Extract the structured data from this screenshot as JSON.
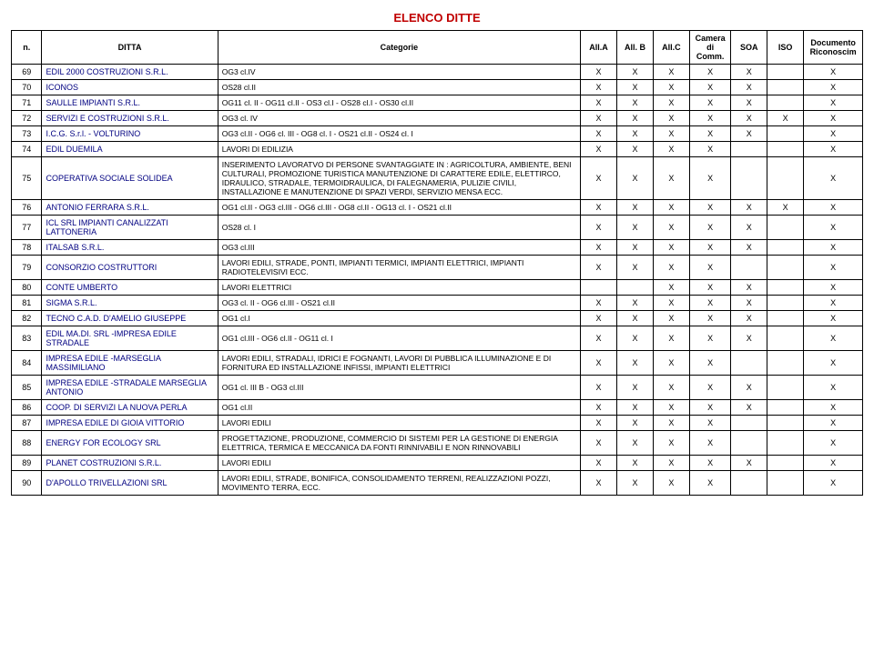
{
  "title": "ELENCO DITTE",
  "headers": {
    "n": "n.",
    "ditta": "DITTA",
    "categorie": "Categorie",
    "a": "All.A",
    "b": "All. B",
    "c": "All.C",
    "d": "Camera di Comm.",
    "e": "SOA",
    "f": "ISO",
    "g": "Documento Riconoscim"
  },
  "rows": [
    {
      "n": "69",
      "ditta": "EDIL 2000 COSTRUZIONI S.R.L.",
      "cat": "OG3 cl.IV",
      "m": [
        "X",
        "X",
        "X",
        "X",
        "X",
        "",
        "X"
      ]
    },
    {
      "n": "70",
      "ditta": "ICONOS",
      "cat": "OS28 cl.II",
      "m": [
        "X",
        "X",
        "X",
        "X",
        "X",
        "",
        "X"
      ]
    },
    {
      "n": "71",
      "ditta": "SAULLE IMPIANTI S.R.L.",
      "cat": "OG11 cl. II - OG11 cl.II - OS3 cl.I - OS28 cl.I - OS30 cl.II",
      "m": [
        "X",
        "X",
        "X",
        "X",
        "X",
        "",
        "X"
      ]
    },
    {
      "n": "72",
      "ditta": "SERVIZI E COSTRUZIONI S.R.L.",
      "cat": "OG3 cl. IV",
      "m": [
        "X",
        "X",
        "X",
        "X",
        "X",
        "X",
        "X"
      ]
    },
    {
      "n": "73",
      "ditta": "I.C.G. S.r.l. - VOLTURINO",
      "cat": "OG3 cl.II - OG6 cl. III - OG8 cl. I - OS21 cl.II - OS24 cl. I",
      "m": [
        "X",
        "X",
        "X",
        "X",
        "X",
        "",
        "X"
      ]
    },
    {
      "n": "74",
      "ditta": "EDIL DUEMILA",
      "cat": "LAVORI DI EDILIZIA",
      "m": [
        "X",
        "X",
        "X",
        "X",
        "",
        "",
        "X"
      ]
    },
    {
      "n": "75",
      "ditta": "COPERATIVA SOCIALE SOLIDEA",
      "cat": "INSERIMENTO LAVORATVO DI PERSONE SVANTAGGIATE IN : AGRICOLTURA, AMBIENTE, BENI CULTURALI, PROMOZIONE TURISTICA MANUTENZIONE DI CARATTERE EDILE, ELETTIRCO, IDRAULICO, STRADALE, TERMOIDRAULICA, DI FALEGNAMERIA, PULIZIE CIVILI, INSTALLAZIONE E MANUTENZIONE DI SPAZI VERDI, SERVIZIO MENSA ECC.",
      "m": [
        "X",
        "X",
        "X",
        "X",
        "",
        "",
        "X"
      ]
    },
    {
      "n": "76",
      "ditta": "ANTONIO FERRARA S.R.L.",
      "cat": "OG1 cl.II - OG3 cl.III - OG6 cl.III - OG8 cl.II - OG13 cl. I - OS21 cl.II",
      "m": [
        "X",
        "X",
        "X",
        "X",
        "X",
        "X",
        "X"
      ]
    },
    {
      "n": "77",
      "ditta": "ICL SRL IMPIANTI CANALIZZATI LATTONERIA",
      "cat": "OS28 cl. I",
      "m": [
        "X",
        "X",
        "X",
        "X",
        "X",
        "",
        "X"
      ]
    },
    {
      "n": "78",
      "ditta": "ITALSAB S.R.L.",
      "cat": "OG3 cl.III",
      "m": [
        "X",
        "X",
        "X",
        "X",
        "X",
        "",
        "X"
      ]
    },
    {
      "n": "79",
      "ditta": "CONSORZIO COSTRUTTORI",
      "cat": "LAVORI EDILI, STRADE, PONTI, IMPIANTI TERMICI, IMPIANTI ELETTRICI, IMPIANTI RADIOTELEVISIVI ECC.",
      "m": [
        "X",
        "X",
        "X",
        "X",
        "",
        "",
        "X"
      ]
    },
    {
      "n": "80",
      "ditta": "CONTE UMBERTO",
      "cat": "LAVORI ELETTRICI",
      "m": [
        "",
        "",
        "X",
        "X",
        "X",
        "",
        "X"
      ]
    },
    {
      "n": "81",
      "ditta": "SIGMA S.R.L.",
      "cat": "OG3 cl. II - OG6 cl.III - OS21 cl.II",
      "m": [
        "X",
        "X",
        "X",
        "X",
        "X",
        "",
        "X"
      ]
    },
    {
      "n": "82",
      "ditta": "TECNO C.A.D. D'AMELIO GIUSEPPE",
      "cat": "OG1 cl.I",
      "m": [
        "X",
        "X",
        "X",
        "X",
        "X",
        "",
        "X"
      ]
    },
    {
      "n": "83",
      "ditta": "EDIL MA.DI. SRL -IMPRESA EDILE STRADALE",
      "cat": "OG1 cl.III - OG6 cl.II - OG11 cl. I",
      "m": [
        "X",
        "X",
        "X",
        "X",
        "X",
        "",
        "X"
      ]
    },
    {
      "n": "84",
      "ditta": "IMPRESA EDILE -MARSEGLIA MASSIMILIANO",
      "cat": "LAVORI EDILI, STRADALI, IDRICI E FOGNANTI, LAVORI DI PUBBLICA ILLUMINAZIONE E DI FORNITURA ED INSTALLAZIONE INFISSI, IMPIANTI ELETTRICI",
      "m": [
        "X",
        "X",
        "X",
        "X",
        "",
        "",
        "X"
      ]
    },
    {
      "n": "85",
      "ditta": "IMPRESA EDILE -STRADALE MARSEGLIA ANTONIO",
      "cat": "OG1 cl. III B - OG3 cl.III",
      "m": [
        "X",
        "X",
        "X",
        "X",
        "X",
        "",
        "X"
      ]
    },
    {
      "n": "86",
      "ditta": "COOP. DI SERVIZI LA NUOVA PERLA",
      "cat": "OG1 cl.II",
      "m": [
        "X",
        "X",
        "X",
        "X",
        "X",
        "",
        "X"
      ]
    },
    {
      "n": "87",
      "ditta": "IMPRESA EDILE DI GIOIA VITTORIO",
      "cat": "LAVORI EDILI",
      "m": [
        "X",
        "X",
        "X",
        "X",
        "",
        "",
        "X"
      ]
    },
    {
      "n": "88",
      "ditta": "ENERGY FOR ECOLOGY SRL",
      "cat": "PROGETTAZIONE, PRODUZIONE, COMMERCIO DI SISTEMI PER LA GESTIONE DI ENERGIA ELETTRICA, TERMICA E MECCANICA DA FONTI RINNIVABILI E NON RINNOVABILI",
      "m": [
        "X",
        "X",
        "X",
        "X",
        "",
        "",
        "X"
      ]
    },
    {
      "n": "89",
      "ditta": "PLANET COSTRUZIONI S.R.L.",
      "cat": "LAVORI EDILI",
      "m": [
        "X",
        "X",
        "X",
        "X",
        "X",
        "",
        "X"
      ]
    },
    {
      "n": "90",
      "ditta": "D'APOLLO TRIVELLAZIONI SRL",
      "cat": "LAVORI EDILI, STRADE, BONIFICA, CONSOLIDAMENTO TERRENI, REALIZZAZIONI POZZI, MOVIMENTO TERRA, ECC.",
      "m": [
        "X",
        "X",
        "X",
        "X",
        "",
        "",
        "X"
      ]
    }
  ]
}
